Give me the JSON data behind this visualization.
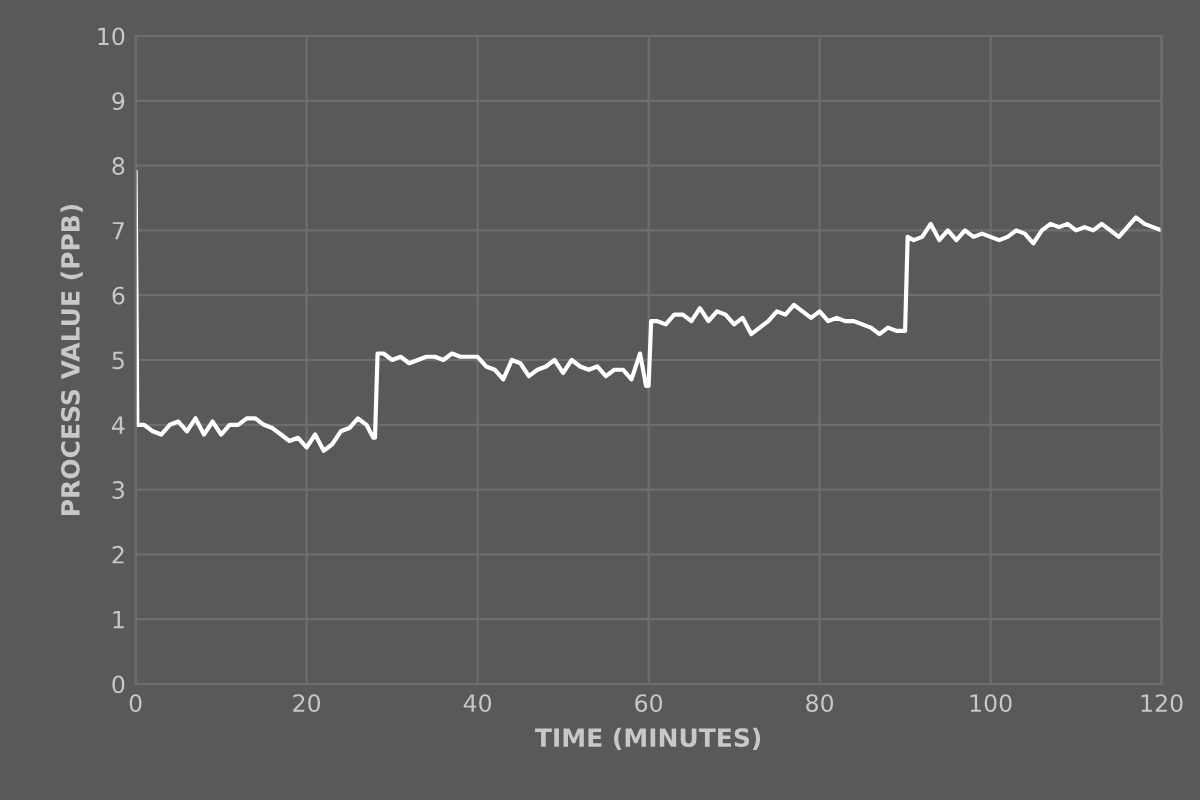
{
  "chart_data": {
    "type": "line",
    "xlabel": "TIME (MINUTES)",
    "ylabel": "PROCESS VALUE (PPB)",
    "xlim": [
      0,
      120
    ],
    "xticks": [
      0,
      20,
      40,
      60,
      80,
      100,
      120
    ],
    "ylim": [
      0,
      10
    ],
    "yticks": [
      0,
      1,
      2,
      3,
      4,
      5,
      6,
      7,
      8,
      9,
      10
    ],
    "grid": true,
    "series": [
      {
        "color": "#ffffff",
        "x": [
          0,
          0.2,
          0.5,
          1,
          2,
          3,
          4,
          5,
          6,
          7,
          8,
          9,
          10,
          11,
          12,
          13,
          14,
          15,
          16,
          17,
          18,
          19,
          20,
          21,
          22,
          23,
          24,
          25,
          26,
          27,
          27.8,
          28,
          28.3,
          29,
          30,
          31,
          32,
          33,
          34,
          35,
          36,
          37,
          38,
          39,
          40,
          41,
          42,
          43,
          44,
          45,
          46,
          47,
          48,
          49,
          50,
          51,
          52,
          53,
          54,
          55,
          56,
          57,
          58,
          59,
          59.7,
          60,
          60.3,
          61,
          62,
          63,
          64,
          65,
          66,
          67,
          68,
          69,
          70,
          71,
          72,
          73,
          74,
          75,
          76,
          77,
          78,
          79,
          80,
          81,
          82,
          83,
          84,
          85,
          86,
          87,
          88,
          89,
          89.8,
          90,
          90.3,
          91,
          92,
          93,
          94,
          95,
          96,
          97,
          98,
          99,
          100,
          101,
          102,
          103,
          104,
          105,
          106,
          107,
          108,
          109,
          110,
          111,
          112,
          113,
          114,
          115,
          116,
          117,
          118,
          119,
          120
        ],
        "values": [
          7.9,
          4.0,
          4.0,
          4.0,
          3.9,
          3.85,
          4.0,
          4.05,
          3.9,
          4.1,
          3.85,
          4.05,
          3.85,
          4.0,
          4.0,
          4.1,
          4.1,
          4.0,
          3.95,
          3.85,
          3.75,
          3.8,
          3.65,
          3.85,
          3.6,
          3.7,
          3.9,
          3.95,
          4.1,
          4.0,
          3.8,
          3.8,
          5.1,
          5.1,
          5.0,
          5.05,
          4.95,
          5.0,
          5.05,
          5.05,
          5.0,
          5.1,
          5.05,
          5.05,
          5.05,
          4.9,
          4.85,
          4.7,
          5.0,
          4.95,
          4.75,
          4.85,
          4.9,
          5.0,
          4.8,
          5.0,
          4.9,
          4.85,
          4.9,
          4.75,
          4.85,
          4.85,
          4.7,
          5.1,
          4.6,
          4.6,
          5.6,
          5.6,
          5.55,
          5.7,
          5.7,
          5.6,
          5.8,
          5.6,
          5.75,
          5.7,
          5.55,
          5.65,
          5.4,
          5.5,
          5.6,
          5.75,
          5.7,
          5.85,
          5.75,
          5.65,
          5.75,
          5.6,
          5.65,
          5.6,
          5.6,
          5.55,
          5.5,
          5.4,
          5.5,
          5.45,
          5.45,
          5.45,
          6.9,
          6.85,
          6.9,
          7.1,
          6.85,
          7.0,
          6.85,
          7.0,
          6.9,
          6.95,
          6.9,
          6.85,
          6.9,
          7.0,
          6.95,
          6.8,
          7.0,
          7.1,
          7.05,
          7.1,
          7.0,
          7.05,
          7.0,
          7.1,
          7.0,
          6.9,
          7.05,
          7.2,
          7.1,
          7.05,
          7.0
        ]
      }
    ]
  }
}
